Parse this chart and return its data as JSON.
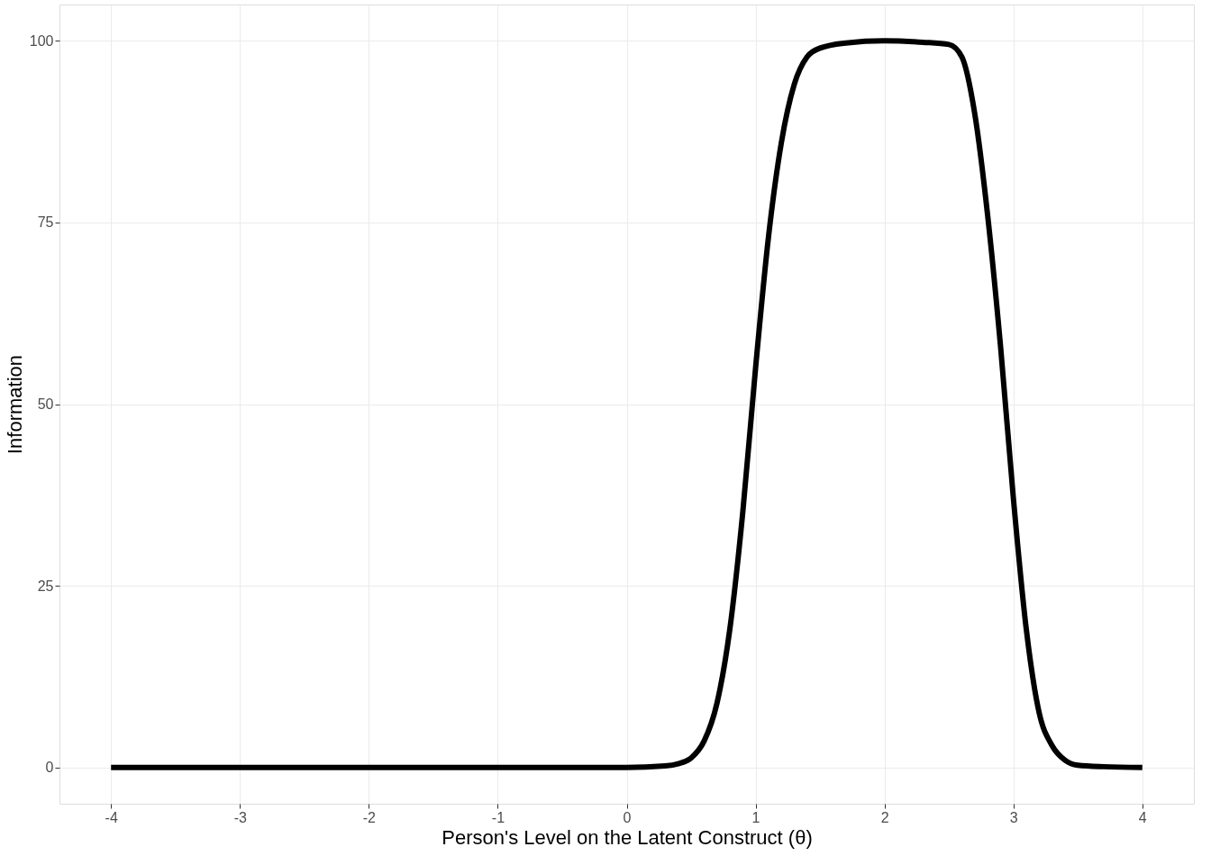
{
  "chart_data": {
    "type": "line",
    "xlabel": "Person's Level on the Latent Construct (θ)",
    "ylabel": "Information",
    "x": [
      -4,
      -3,
      -2,
      -1,
      0,
      0.3,
      0.4,
      0.5,
      0.6,
      0.7,
      0.8,
      0.9,
      1.0,
      1.1,
      1.2,
      1.3,
      1.4,
      1.5,
      1.7,
      2.0,
      2.3,
      2.5,
      2.6,
      2.7,
      2.8,
      2.9,
      3.0,
      3.1,
      3.2,
      3.3,
      3.4,
      3.5,
      3.7,
      4
    ],
    "series": [
      {
        "color": "#000000",
        "values": [
          0,
          0,
          0,
          0,
          0,
          0.2,
          0.5,
          1.3,
          3.6,
          8.8,
          19,
          35,
          55,
          73,
          86,
          94,
          97.8,
          99,
          99.7,
          100,
          99.8,
          99.5,
          97.8,
          90,
          76,
          58,
          37,
          19,
          7.5,
          3,
          1,
          0.3,
          0.1,
          0
        ]
      }
    ],
    "xlim": [
      -4.4,
      4.4
    ],
    "ylim": [
      -5,
      105
    ],
    "xticks": [
      -4,
      -3,
      -2,
      -1,
      0,
      1,
      2,
      3,
      4
    ],
    "yticks": [
      0,
      25,
      50,
      75,
      100
    ],
    "grid": true,
    "marker": "none",
    "line_style": "solid"
  }
}
